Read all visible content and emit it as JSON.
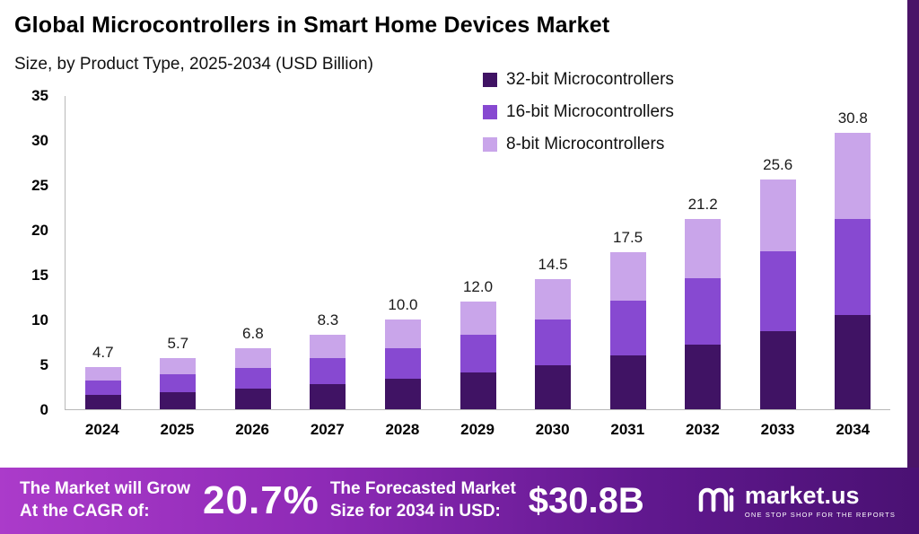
{
  "header": {
    "title": "Global Microcontrollers in Smart Home Devices Market",
    "subtitle": "Size, by Product Type, 2025-2034 (USD Billion)"
  },
  "chart_data": {
    "type": "bar",
    "stacked": true,
    "title": "Global Microcontrollers in Smart Home Devices Market",
    "subtitle": "Size, by Product Type, 2025-2034 (USD Billion)",
    "xlabel": "",
    "ylabel": "",
    "ylim": [
      0,
      35
    ],
    "yticks": [
      0,
      5,
      10,
      15,
      20,
      25,
      30,
      35
    ],
    "grid": false,
    "legend_position": "top-right",
    "categories": [
      "2024",
      "2025",
      "2026",
      "2027",
      "2028",
      "2029",
      "2030",
      "2031",
      "2032",
      "2033",
      "2034"
    ],
    "series": [
      {
        "name": "32-bit Microcontrollers",
        "color": "#401364",
        "values": [
          1.6,
          1.9,
          2.3,
          2.8,
          3.4,
          4.1,
          4.9,
          6.0,
          7.2,
          8.7,
          10.5
        ]
      },
      {
        "name": "16-bit Microcontrollers",
        "color": "#8749d1",
        "values": [
          1.6,
          2.0,
          2.3,
          2.9,
          3.4,
          4.2,
          5.1,
          6.1,
          7.4,
          8.9,
          10.7
        ]
      },
      {
        "name": "8-bit Microcontrollers",
        "color": "#c9a5ea",
        "values": [
          1.5,
          1.8,
          2.2,
          2.6,
          3.2,
          3.7,
          4.5,
          5.4,
          6.6,
          8.0,
          9.6
        ]
      }
    ],
    "totals": [
      4.7,
      5.7,
      6.8,
      8.3,
      10.0,
      12.0,
      14.5,
      17.5,
      21.2,
      25.6,
      30.8
    ]
  },
  "footer": {
    "cagr_label_lines": [
      "The Market will Grow",
      "At the CAGR of:"
    ],
    "cagr_value": "20.7%",
    "forecast_label_lines": [
      "The Forecasted Market",
      "Size for 2034 in USD:"
    ],
    "forecast_value": "$30.8B",
    "brand": "market.us",
    "brand_tagline": "ONE STOP SHOP FOR THE REPORTS"
  },
  "colors": {
    "accent_strip": "#4a1468",
    "footer_gradient_start": "#ab3bca",
    "footer_gradient_end": "#4a1173"
  }
}
